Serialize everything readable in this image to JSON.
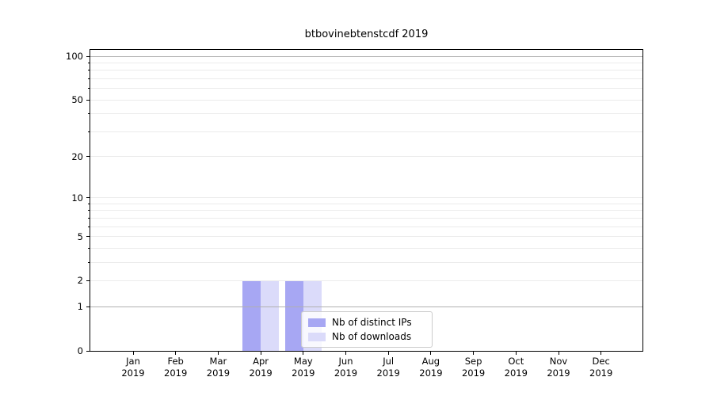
{
  "figure": {
    "title": "btbovinebtenstcdf 2019"
  },
  "chart_data": {
    "type": "bar",
    "title": "btbovinebtenstcdf 2019",
    "xlabel": "",
    "ylabel": "",
    "yscale": "log1p",
    "ylim": [
      0,
      100
    ],
    "grid": "horizontal major+minor",
    "legend_position": "inside lower-center",
    "categories": [
      "Jan 2019",
      "Feb 2019",
      "Mar 2019",
      "Apr 2019",
      "May 2019",
      "Jun 2019",
      "Jul 2019",
      "Aug 2019",
      "Sep 2019",
      "Oct 2019",
      "Nov 2019",
      "Dec 2019"
    ],
    "x_tick_labels": [
      {
        "month": "Jan",
        "year": "2019"
      },
      {
        "month": "Feb",
        "year": "2019"
      },
      {
        "month": "Mar",
        "year": "2019"
      },
      {
        "month": "Apr",
        "year": "2019"
      },
      {
        "month": "May",
        "year": "2019"
      },
      {
        "month": "Jun",
        "year": "2019"
      },
      {
        "month": "Jul",
        "year": "2019"
      },
      {
        "month": "Aug",
        "year": "2019"
      },
      {
        "month": "Sep",
        "year": "2019"
      },
      {
        "month": "Oct",
        "year": "2019"
      },
      {
        "month": "Nov",
        "year": "2019"
      },
      {
        "month": "Dec",
        "year": "2019"
      }
    ],
    "y_ticks": [
      {
        "value": 0,
        "label": "0"
      },
      {
        "value": 1,
        "label": "1"
      },
      {
        "value": 2,
        "label": "2"
      },
      {
        "value": 5,
        "label": "5"
      },
      {
        "value": 10,
        "label": "10"
      },
      {
        "value": 20,
        "label": "20"
      },
      {
        "value": 50,
        "label": "50"
      },
      {
        "value": 100,
        "label": "100"
      }
    ],
    "y_minor_gridlines": [
      2,
      3,
      4,
      5,
      6,
      7,
      8,
      9,
      10,
      20,
      30,
      40,
      50,
      60,
      70,
      80,
      90
    ],
    "y_major_gridlines": [
      1,
      100
    ],
    "series": [
      {
        "name": "Nb of distinct IPs",
        "color": "#a7a7f3",
        "values": [
          0,
          0,
          0,
          2,
          2,
          0,
          0,
          0,
          0,
          0,
          0,
          0
        ]
      },
      {
        "name": "Nb of downloads",
        "color": "#dbdbfa",
        "values": [
          0,
          0,
          0,
          2,
          2,
          0,
          0,
          0,
          0,
          0,
          0,
          0
        ]
      }
    ],
    "colors": {
      "major_grid": "#b0b0b0",
      "minor_grid": "#ebebeb",
      "spine": "#000000",
      "bar_distinct_ips": "#a7a7f3",
      "bar_downloads": "#dbdbfa"
    }
  }
}
